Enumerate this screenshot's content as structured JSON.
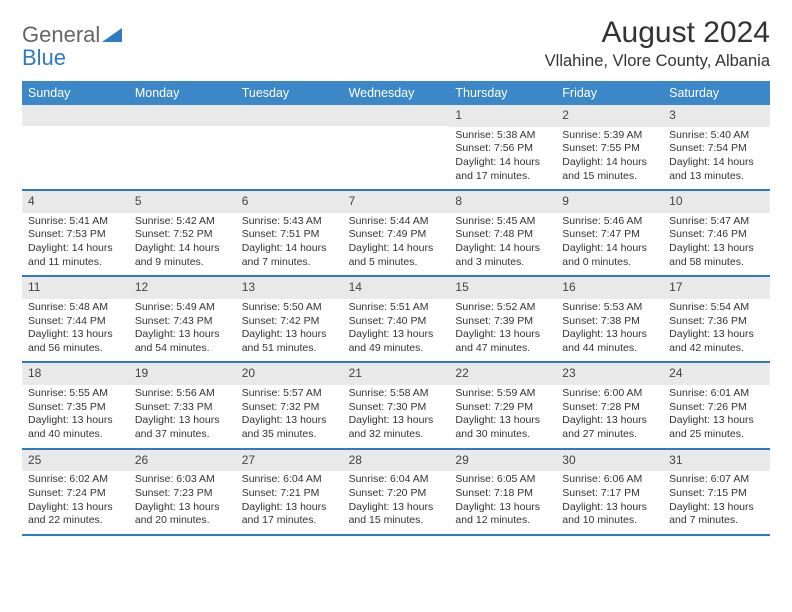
{
  "logo": {
    "general": "General",
    "blue": "Blue"
  },
  "title": "August 2024",
  "location": "Vllahine, Vlore County, Albania",
  "header_bg": "#3b87c8",
  "border_color": "#2f7ac0",
  "daynum_bg": "#e9e9e9",
  "weekdays": [
    "Sunday",
    "Monday",
    "Tuesday",
    "Wednesday",
    "Thursday",
    "Friday",
    "Saturday"
  ],
  "weeks": [
    [
      null,
      null,
      null,
      null,
      {
        "n": "1",
        "sr": "5:38 AM",
        "ss": "7:56 PM",
        "dl": "14 hours and 17 minutes."
      },
      {
        "n": "2",
        "sr": "5:39 AM",
        "ss": "7:55 PM",
        "dl": "14 hours and 15 minutes."
      },
      {
        "n": "3",
        "sr": "5:40 AM",
        "ss": "7:54 PM",
        "dl": "14 hours and 13 minutes."
      }
    ],
    [
      {
        "n": "4",
        "sr": "5:41 AM",
        "ss": "7:53 PM",
        "dl": "14 hours and 11 minutes."
      },
      {
        "n": "5",
        "sr": "5:42 AM",
        "ss": "7:52 PM",
        "dl": "14 hours and 9 minutes."
      },
      {
        "n": "6",
        "sr": "5:43 AM",
        "ss": "7:51 PM",
        "dl": "14 hours and 7 minutes."
      },
      {
        "n": "7",
        "sr": "5:44 AM",
        "ss": "7:49 PM",
        "dl": "14 hours and 5 minutes."
      },
      {
        "n": "8",
        "sr": "5:45 AM",
        "ss": "7:48 PM",
        "dl": "14 hours and 3 minutes."
      },
      {
        "n": "9",
        "sr": "5:46 AM",
        "ss": "7:47 PM",
        "dl": "14 hours and 0 minutes."
      },
      {
        "n": "10",
        "sr": "5:47 AM",
        "ss": "7:46 PM",
        "dl": "13 hours and 58 minutes."
      }
    ],
    [
      {
        "n": "11",
        "sr": "5:48 AM",
        "ss": "7:44 PM",
        "dl": "13 hours and 56 minutes."
      },
      {
        "n": "12",
        "sr": "5:49 AM",
        "ss": "7:43 PM",
        "dl": "13 hours and 54 minutes."
      },
      {
        "n": "13",
        "sr": "5:50 AM",
        "ss": "7:42 PM",
        "dl": "13 hours and 51 minutes."
      },
      {
        "n": "14",
        "sr": "5:51 AM",
        "ss": "7:40 PM",
        "dl": "13 hours and 49 minutes."
      },
      {
        "n": "15",
        "sr": "5:52 AM",
        "ss": "7:39 PM",
        "dl": "13 hours and 47 minutes."
      },
      {
        "n": "16",
        "sr": "5:53 AM",
        "ss": "7:38 PM",
        "dl": "13 hours and 44 minutes."
      },
      {
        "n": "17",
        "sr": "5:54 AM",
        "ss": "7:36 PM",
        "dl": "13 hours and 42 minutes."
      }
    ],
    [
      {
        "n": "18",
        "sr": "5:55 AM",
        "ss": "7:35 PM",
        "dl": "13 hours and 40 minutes."
      },
      {
        "n": "19",
        "sr": "5:56 AM",
        "ss": "7:33 PM",
        "dl": "13 hours and 37 minutes."
      },
      {
        "n": "20",
        "sr": "5:57 AM",
        "ss": "7:32 PM",
        "dl": "13 hours and 35 minutes."
      },
      {
        "n": "21",
        "sr": "5:58 AM",
        "ss": "7:30 PM",
        "dl": "13 hours and 32 minutes."
      },
      {
        "n": "22",
        "sr": "5:59 AM",
        "ss": "7:29 PM",
        "dl": "13 hours and 30 minutes."
      },
      {
        "n": "23",
        "sr": "6:00 AM",
        "ss": "7:28 PM",
        "dl": "13 hours and 27 minutes."
      },
      {
        "n": "24",
        "sr": "6:01 AM",
        "ss": "7:26 PM",
        "dl": "13 hours and 25 minutes."
      }
    ],
    [
      {
        "n": "25",
        "sr": "6:02 AM",
        "ss": "7:24 PM",
        "dl": "13 hours and 22 minutes."
      },
      {
        "n": "26",
        "sr": "6:03 AM",
        "ss": "7:23 PM",
        "dl": "13 hours and 20 minutes."
      },
      {
        "n": "27",
        "sr": "6:04 AM",
        "ss": "7:21 PM",
        "dl": "13 hours and 17 minutes."
      },
      {
        "n": "28",
        "sr": "6:04 AM",
        "ss": "7:20 PM",
        "dl": "13 hours and 15 minutes."
      },
      {
        "n": "29",
        "sr": "6:05 AM",
        "ss": "7:18 PM",
        "dl": "13 hours and 12 minutes."
      },
      {
        "n": "30",
        "sr": "6:06 AM",
        "ss": "7:17 PM",
        "dl": "13 hours and 10 minutes."
      },
      {
        "n": "31",
        "sr": "6:07 AM",
        "ss": "7:15 PM",
        "dl": "13 hours and 7 minutes."
      }
    ]
  ],
  "labels": {
    "sunrise": "Sunrise: ",
    "sunset": "Sunset: ",
    "daylight": "Daylight: "
  }
}
